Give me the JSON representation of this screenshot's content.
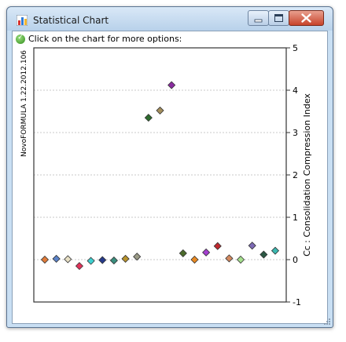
{
  "window": {
    "title": "Statistical Chart",
    "app_icon": "bar-chart-icon",
    "buttons": {
      "minimize_icon": "minimize-icon",
      "maximize_icon": "maximize-icon",
      "close_icon": "close-icon"
    }
  },
  "hint": {
    "icon": "info-check-icon",
    "text": "Click on the chart for more options:"
  },
  "side_label": "NovoFORMULA 1.22.2012.106",
  "chart_data": {
    "type": "scatter",
    "title": "",
    "xlabel": "",
    "ylabel": "Cc : Consolidation Compression Index",
    "ylim": [
      -1,
      5
    ],
    "yticks": [
      "-1",
      "0",
      "1",
      "2",
      "3",
      "4",
      "5"
    ],
    "grid": true,
    "points": [
      {
        "x": 1,
        "y": 0.0,
        "color": "#e07b39"
      },
      {
        "x": 2,
        "y": 0.02,
        "color": "#5b83c9"
      },
      {
        "x": 3,
        "y": 0.01,
        "color": "#e7dfc4"
      },
      {
        "x": 4,
        "y": -0.15,
        "color": "#e0335a"
      },
      {
        "x": 5,
        "y": -0.03,
        "color": "#3ed0d0"
      },
      {
        "x": 6,
        "y": -0.01,
        "color": "#253a8a"
      },
      {
        "x": 7,
        "y": -0.02,
        "color": "#3a8f7f"
      },
      {
        "x": 8,
        "y": 0.02,
        "color": "#b8932c"
      },
      {
        "x": 9,
        "y": 0.07,
        "color": "#9a9a86"
      },
      {
        "x": 10,
        "y": 3.35,
        "color": "#2d6b2d"
      },
      {
        "x": 11,
        "y": 3.52,
        "color": "#a58f5d"
      },
      {
        "x": 12,
        "y": 4.12,
        "color": "#8a2ba0"
      },
      {
        "x": 13,
        "y": 0.15,
        "color": "#4b6b2b"
      },
      {
        "x": 14,
        "y": 0.0,
        "color": "#e88922"
      },
      {
        "x": 15,
        "y": 0.17,
        "color": "#a43fd0"
      },
      {
        "x": 16,
        "y": 0.32,
        "color": "#c0292f"
      },
      {
        "x": 17,
        "y": 0.03,
        "color": "#d3895f"
      },
      {
        "x": 18,
        "y": 0.0,
        "color": "#a6e08e"
      },
      {
        "x": 19,
        "y": 0.33,
        "color": "#7d6ab5"
      },
      {
        "x": 20,
        "y": 0.12,
        "color": "#2b5743"
      },
      {
        "x": 21,
        "y": 0.21,
        "color": "#3bb8b0"
      }
    ]
  }
}
